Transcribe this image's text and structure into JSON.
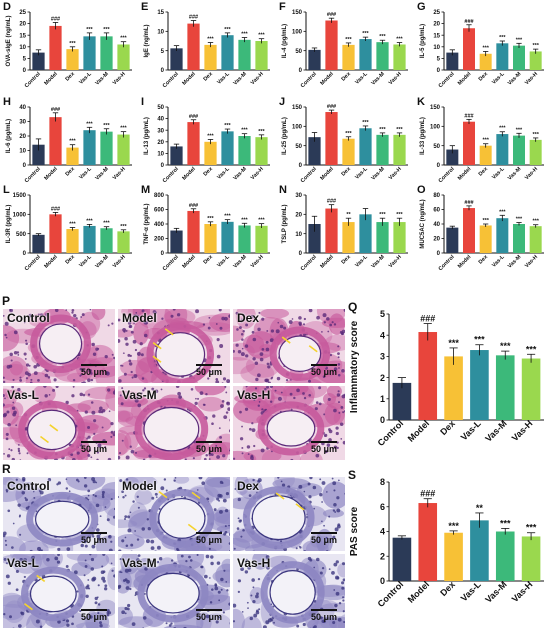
{
  "colors": {
    "Control": "#2b3a57",
    "Model": "#e8453c",
    "Dex": "#f7c136",
    "Vas-L": "#2e8f9e",
    "Vas-M": "#3cb97a",
    "Vas-H": "#9ad84e",
    "he_bg": "#f0d9e6",
    "he_tissue": "#c75a9c",
    "he_nuclei": "#5b2a7a",
    "pas_bg": "#e8e6f2",
    "pas_tissue": "#8d86c2",
    "pas_nuclei": "#3c3780",
    "arrow": "#f4d22e"
  },
  "chart_data": [
    {
      "panel": "D",
      "type": "bar",
      "ylabel": "OVA-sIgE (ng/mL)",
      "yticks": [
        "0",
        "5",
        "10",
        "15",
        "20",
        "25"
      ],
      "ylim": [
        0,
        25
      ],
      "categories": [
        "Control",
        "Model",
        "Dex",
        "Vas-L",
        "Vas-M",
        "Vas-H"
      ],
      "values": [
        7.5,
        19,
        9,
        14.5,
        14.5,
        11
      ],
      "errors": [
        1.2,
        1.5,
        1,
        1.5,
        1.5,
        1.2
      ],
      "annotations": [
        "",
        "###",
        "***",
        "***",
        "***",
        "***"
      ]
    },
    {
      "panel": "E",
      "type": "bar",
      "ylabel": "IgE (ng/mL)",
      "yticks": [
        "0",
        "5",
        "10",
        "15"
      ],
      "ylim": [
        0,
        15
      ],
      "categories": [
        "Control",
        "Model",
        "Dex",
        "Vas-L",
        "Vas-M",
        "Vas-H"
      ],
      "values": [
        5.6,
        12,
        6.5,
        9,
        7.8,
        7.5
      ],
      "errors": [
        0.7,
        0.8,
        0.6,
        0.6,
        0.6,
        0.6
      ],
      "annotations": [
        "",
        "###",
        "***",
        "***",
        "***",
        "***"
      ]
    },
    {
      "panel": "F",
      "type": "bar",
      "ylabel": "IL-4 (pg/mL)",
      "yticks": [
        "0",
        "50",
        "100",
        "150"
      ],
      "ylim": [
        0,
        150
      ],
      "categories": [
        "Control",
        "Model",
        "Dex",
        "Vas-L",
        "Vas-M",
        "Vas-H"
      ],
      "values": [
        52,
        128,
        65,
        80,
        72,
        66
      ],
      "errors": [
        5,
        6,
        5,
        5,
        5,
        5
      ],
      "annotations": [
        "",
        "###",
        "***",
        "***",
        "***",
        "***"
      ]
    },
    {
      "panel": "G",
      "type": "bar",
      "ylabel": "IL-5 (pg/mL)",
      "yticks": [
        "0",
        "5",
        "10",
        "15",
        "20",
        "25"
      ],
      "ylim": [
        0,
        25
      ],
      "categories": [
        "Control",
        "Model",
        "Dex",
        "Vas-L",
        "Vas-M",
        "Vas-H"
      ],
      "values": [
        7.5,
        18,
        7,
        11.5,
        10.5,
        8
      ],
      "errors": [
        1.2,
        1.5,
        1,
        1,
        1,
        1
      ],
      "annotations": [
        "",
        "###",
        "***",
        "***",
        "***",
        "***"
      ]
    },
    {
      "panel": "H",
      "type": "bar",
      "ylabel": "IL-6 (pg/mL)",
      "yticks": [
        "0",
        "10",
        "20",
        "30",
        "40"
      ],
      "ylim": [
        0,
        40
      ],
      "categories": [
        "Control",
        "Model",
        "Dex",
        "Vas-L",
        "Vas-M",
        "Vas-H"
      ],
      "values": [
        14,
        33,
        12,
        24,
        23,
        21
      ],
      "errors": [
        4,
        3,
        2,
        2,
        2,
        2
      ],
      "annotations": [
        "",
        "###",
        "***",
        "***",
        "***",
        "***"
      ]
    },
    {
      "panel": "I",
      "type": "bar",
      "ylabel": "IL-13 (pg/mL)",
      "yticks": [
        "0",
        "10",
        "20",
        "30",
        "40",
        "50"
      ],
      "ylim": [
        0,
        50
      ],
      "categories": [
        "Control",
        "Model",
        "Dex",
        "Vas-L",
        "Vas-M",
        "Vas-H"
      ],
      "values": [
        16,
        37,
        20,
        29,
        25,
        24
      ],
      "errors": [
        2,
        2,
        2,
        2,
        2,
        2
      ],
      "annotations": [
        "",
        "###",
        "***",
        "***",
        "***",
        "***"
      ]
    },
    {
      "panel": "J",
      "type": "bar",
      "ylabel": "IL-25 (pg/mL)",
      "yticks": [
        "0",
        "50",
        "100",
        "150"
      ],
      "ylim": [
        0,
        150
      ],
      "categories": [
        "Control",
        "Model",
        "Dex",
        "Vas-L",
        "Vas-M",
        "Vas-H"
      ],
      "values": [
        72,
        137,
        68,
        95,
        78,
        78
      ],
      "errors": [
        12,
        5,
        5,
        6,
        5,
        5
      ],
      "annotations": [
        "",
        "###",
        "***",
        "***",
        "***",
        "***"
      ]
    },
    {
      "panel": "K",
      "type": "bar",
      "ylabel": "IL-33 (pg/mL)",
      "yticks": [
        "0",
        "50",
        "100",
        "150"
      ],
      "ylim": [
        0,
        150
      ],
      "categories": [
        "Control",
        "Model",
        "Dex",
        "Vas-L",
        "Vas-M",
        "Vas-H"
      ],
      "values": [
        40,
        112,
        50,
        80,
        76,
        65
      ],
      "errors": [
        10,
        6,
        5,
        6,
        6,
        5
      ],
      "annotations": [
        "",
        "###",
        "***",
        "***",
        "***",
        "***"
      ]
    },
    {
      "panel": "L",
      "type": "bar",
      "ylabel": "IL-3R (pg/mL)",
      "yticks": [
        "0",
        "500",
        "1000",
        "1500"
      ],
      "ylim": [
        0,
        1500
      ],
      "categories": [
        "Control",
        "Model",
        "Dex",
        "Vas-L",
        "Vas-M",
        "Vas-H"
      ],
      "values": [
        470,
        1000,
        620,
        700,
        640,
        560
      ],
      "errors": [
        30,
        50,
        40,
        40,
        40,
        40
      ],
      "annotations": [
        "",
        "###",
        "***",
        "***",
        "***",
        "***"
      ]
    },
    {
      "panel": "M",
      "type": "bar",
      "ylabel": "TNF-α (pg/mL)",
      "yticks": [
        "0",
        "200",
        "400",
        "600",
        "800"
      ],
      "ylim": [
        0,
        800
      ],
      "categories": [
        "Control",
        "Model",
        "Dex",
        "Vas-L",
        "Vas-M",
        "Vas-H"
      ],
      "values": [
        310,
        580,
        400,
        430,
        380,
        375
      ],
      "errors": [
        30,
        30,
        30,
        30,
        30,
        30
      ],
      "annotations": [
        "",
        "###",
        "***",
        "***",
        "***",
        "***"
      ]
    },
    {
      "panel": "N",
      "type": "bar",
      "ylabel": "TSLP (pg/mL)",
      "yticks": [
        "0",
        "10",
        "20",
        "30"
      ],
      "ylim": [
        0,
        30
      ],
      "categories": [
        "Control",
        "Model",
        "Dex",
        "Vas-L",
        "Vas-M",
        "Vas-H"
      ],
      "values": [
        15,
        23,
        16,
        20,
        16,
        16
      ],
      "errors": [
        4,
        2,
        2,
        3,
        2,
        2
      ],
      "annotations": [
        "",
        "###",
        "**",
        "",
        "***",
        "***"
      ]
    },
    {
      "panel": "O",
      "type": "bar",
      "ylabel": "MUC5AC (ng/mL)",
      "yticks": [
        "0",
        "20",
        "40",
        "60",
        "80"
      ],
      "ylim": [
        0,
        80
      ],
      "categories": [
        "Control",
        "Model",
        "Dex",
        "Vas-L",
        "Vas-M",
        "Vas-H"
      ],
      "values": [
        35,
        62,
        38,
        48,
        40,
        37
      ],
      "errors": [
        2,
        3,
        2,
        4,
        2,
        2
      ],
      "annotations": [
        "",
        "###",
        "***",
        "***",
        "***",
        "***"
      ]
    },
    {
      "panel": "Q",
      "type": "bar",
      "ylabel": "Inflammatory score",
      "yticks": [
        "0",
        "1",
        "2",
        "3",
        "4",
        "5"
      ],
      "ylim": [
        0,
        5
      ],
      "categories": [
        "Control",
        "Model",
        "Dex",
        "Vas-L",
        "Vas-M",
        "Vas-H"
      ],
      "values": [
        1.75,
        4.15,
        3.0,
        3.3,
        3.05,
        2.9
      ],
      "errors": [
        0.25,
        0.4,
        0.4,
        0.25,
        0.2,
        0.2
      ],
      "annotations": [
        "",
        "###",
        "***",
        "***",
        "***",
        "***"
      ]
    },
    {
      "panel": "S",
      "type": "bar",
      "ylabel": "PAS score",
      "yticks": [
        "0",
        "2",
        "4",
        "6",
        "8"
      ],
      "ylim": [
        0,
        8
      ],
      "categories": [
        "Control",
        "Model",
        "Dex",
        "Vas-L",
        "Vas-M",
        "Vas-H"
      ],
      "values": [
        3.5,
        6.3,
        3.9,
        4.9,
        4.0,
        3.6
      ],
      "errors": [
        0.15,
        0.35,
        0.15,
        0.6,
        0.25,
        0.3
      ],
      "annotations": [
        "",
        "###",
        "***",
        "**",
        "***",
        "***"
      ]
    }
  ],
  "micrographs": {
    "P": {
      "letter": "P",
      "tiles": [
        {
          "label": "Control",
          "scale": "50 μm"
        },
        {
          "label": "Model",
          "scale": "50 μm"
        },
        {
          "label": "Dex",
          "scale": "50 μm"
        },
        {
          "label": "Vas-L",
          "scale": "50 μm"
        },
        {
          "label": "Vas-M",
          "scale": "50 μm"
        },
        {
          "label": "Vas-H",
          "scale": "50 μm"
        }
      ]
    },
    "R": {
      "letter": "R",
      "tiles": [
        {
          "label": "Control",
          "scale": "50 μm"
        },
        {
          "label": "Model",
          "scale": "50 μm"
        },
        {
          "label": "Dex",
          "scale": "50 μm"
        },
        {
          "label": "Vas-L",
          "scale": "50 μm"
        },
        {
          "label": "Vas-M",
          "scale": "50 μm"
        },
        {
          "label": "Vas-H",
          "scale": "50 μm"
        }
      ]
    }
  }
}
